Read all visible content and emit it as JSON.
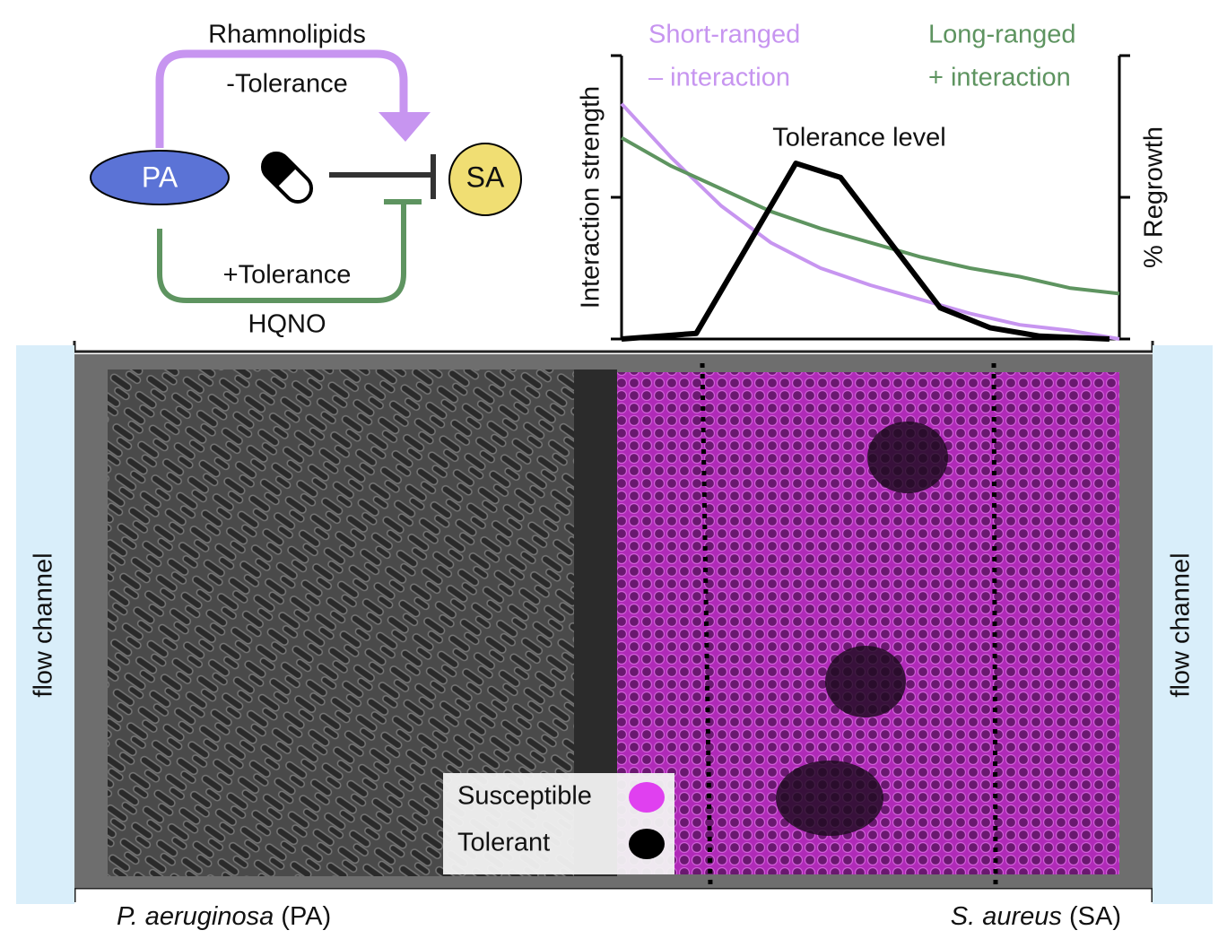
{
  "diagram": {
    "top_label": "Rhamnolipids",
    "top_effect": "-Tolerance",
    "left_node": "PA",
    "right_node": "SA",
    "bottom_effect": "+Tolerance",
    "bottom_label": "HQNO"
  },
  "chart_data": {
    "type": "line",
    "y_label": "Interaction strength",
    "y2_label": "% Regrowth",
    "x": [
      0,
      0.1,
      0.2,
      0.3,
      0.4,
      0.5,
      0.6,
      0.7,
      0.8,
      0.9,
      1.0
    ],
    "xlim": [
      0,
      1
    ],
    "ylim": [
      0,
      1
    ],
    "yticks": [
      0,
      0.5,
      1
    ],
    "y2lim": [
      0,
      100
    ],
    "y2ticks": [
      0,
      50,
      100
    ],
    "series": [
      {
        "name": "Short-ranged",
        "note": "– interaction",
        "color": "#c795f0",
        "values": [
          0.83,
          0.64,
          0.47,
          0.34,
          0.25,
          0.19,
          0.14,
          0.09,
          0.05,
          0.03,
          0
        ]
      },
      {
        "name": "Long-ranged",
        "note": "+ interaction",
        "color": "#5e9460",
        "values": [
          0.71,
          0.61,
          0.53,
          0.45,
          0.39,
          0.34,
          0.29,
          0.25,
          0.22,
          0.18,
          0.16
        ]
      },
      {
        "name": "Tolerance level",
        "color": "#000000",
        "axis": "y2",
        "x": [
          0,
          0.15,
          0.35,
          0.44,
          0.64,
          0.74,
          0.84,
          0.98
        ],
        "values": [
          0,
          2,
          62,
          57,
          11,
          4,
          1,
          0
        ]
      }
    ]
  },
  "image": {
    "side_labels": [
      "flow channel",
      "flow channel"
    ],
    "legend": [
      {
        "label": "Susceptible",
        "color": "#e040f0"
      },
      {
        "label": "Tolerant",
        "color": "#000000"
      }
    ],
    "captions": [
      {
        "species": "P. aeruginosa",
        "abbr": "(PA)"
      },
      {
        "species": "S. aureus",
        "abbr": "(SA)"
      }
    ]
  }
}
